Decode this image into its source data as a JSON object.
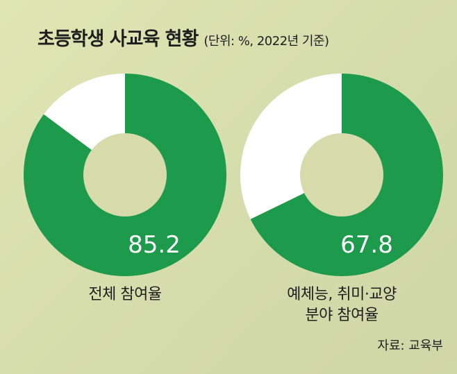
{
  "header": {
    "title": "초등학생 사교육 현황",
    "subtitle": "(단위: %, 2022년 기준)"
  },
  "chart_data": [
    {
      "type": "pie",
      "label": "전체 참여율",
      "value": 85.2,
      "value_label": "85.2",
      "remainder": 14.8
    },
    {
      "type": "pie",
      "label_lines": [
        "예체능, 취미·교양",
        "분야 참여율"
      ],
      "value": 67.8,
      "value_label": "67.8",
      "remainder": 32.2
    }
  ],
  "colors": {
    "filled": "#1d9a4c",
    "remainder": "#ffffff",
    "hole": "#d7dbac"
  },
  "source": "자료: 교육부"
}
